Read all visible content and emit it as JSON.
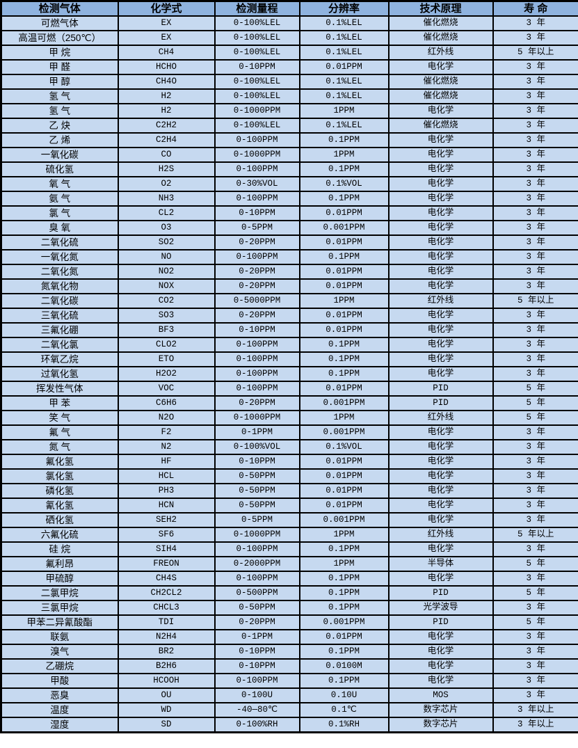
{
  "table": {
    "columns": [
      {
        "key": "gas",
        "label": "检测气体"
      },
      {
        "key": "formula",
        "label": "化学式"
      },
      {
        "key": "range",
        "label": "检测量程"
      },
      {
        "key": "resolution",
        "label": "分辨率"
      },
      {
        "key": "principle",
        "label": "技术原理"
      },
      {
        "key": "lifespan",
        "label": "寿 命"
      }
    ],
    "rows": [
      [
        "可燃气体",
        "EX",
        "0-100%LEL",
        "0.1%LEL",
        "催化燃烧",
        "3 年"
      ],
      [
        "高温可燃（250℃）",
        "EX",
        "0-100%LEL",
        "0.1%LEL",
        "催化燃烧",
        "3 年"
      ],
      [
        "甲 烷",
        "CH4",
        "0-100%LEL",
        "0.1%LEL",
        "红外线",
        "5 年以上"
      ],
      [
        "甲 醛",
        "HCHO",
        "0-10PPM",
        "0.01PPM",
        "电化学",
        "3 年"
      ],
      [
        "甲 醇",
        "CH4O",
        "0-100%LEL",
        "0.1%LEL",
        "催化燃烧",
        "3 年"
      ],
      [
        "氢 气",
        "H2",
        "0-100%LEL",
        "0.1%LEL",
        "催化燃烧",
        "3 年"
      ],
      [
        "氢 气",
        "H2",
        "0-1000PPM",
        "1PPM",
        "电化学",
        "3 年"
      ],
      [
        "乙 炔",
        "C2H2",
        "0-100%LEL",
        "0.1%LEL",
        "催化燃烧",
        "3 年"
      ],
      [
        "乙 烯",
        "C2H4",
        "0-100PPM",
        "0.1PPM",
        "电化学",
        "3 年"
      ],
      [
        "一氧化碳",
        "CO",
        "0-1000PPM",
        "1PPM",
        "电化学",
        "3 年"
      ],
      [
        "硫化氢",
        "H2S",
        "0-100PPM",
        "0.1PPM",
        "电化学",
        "3 年"
      ],
      [
        "氧 气",
        "O2",
        "0-30%VOL",
        "0.1%VOL",
        "电化学",
        "3 年"
      ],
      [
        "氨 气",
        "NH3",
        "0-100PPM",
        "0.1PPM",
        "电化学",
        "3 年"
      ],
      [
        "氯 气",
        "CL2",
        "0-10PPM",
        "0.01PPM",
        "电化学",
        "3 年"
      ],
      [
        "臭 氧",
        "O3",
        "0-5PPM",
        "0.001PPM",
        "电化学",
        "3 年"
      ],
      [
        "二氧化硫",
        "SO2",
        "0-20PPM",
        "0.01PPM",
        "电化学",
        "3 年"
      ],
      [
        "一氧化氮",
        "NO",
        "0-100PPM",
        "0.1PPM",
        "电化学",
        "3 年"
      ],
      [
        "二氧化氮",
        "NO2",
        "0-20PPM",
        "0.01PPM",
        "电化学",
        "3 年"
      ],
      [
        "氮氧化物",
        "NOX",
        "0-20PPM",
        "0.01PPM",
        "电化学",
        "3 年"
      ],
      [
        "二氧化碳",
        "CO2",
        "0-5000PPM",
        "1PPM",
        "红外线",
        "5 年以上"
      ],
      [
        "三氧化硫",
        "SO3",
        "0-20PPM",
        "0.01PPM",
        "电化学",
        "3 年"
      ],
      [
        "三氟化硼",
        "BF3",
        "0-10PPM",
        "0.01PPM",
        "电化学",
        "3 年"
      ],
      [
        "二氧化氯",
        "CLO2",
        "0-100PPM",
        "0.1PPM",
        "电化学",
        "3 年"
      ],
      [
        "环氧乙烷",
        "ETO",
        "0-100PPM",
        "0.1PPM",
        "电化学",
        "3 年"
      ],
      [
        "过氧化氢",
        "H2O2",
        "0-100PPM",
        "0.1PPM",
        "电化学",
        "3 年"
      ],
      [
        "挥发性气体",
        "VOC",
        "0-100PPM",
        "0.01PPM",
        "PID",
        "5 年"
      ],
      [
        "甲 苯",
        "C6H6",
        "0-20PPM",
        "0.001PPM",
        "PID",
        "5 年"
      ],
      [
        "笑 气",
        "N2O",
        "0-1000PPM",
        "1PPM",
        "红外线",
        "5 年"
      ],
      [
        "氟 气",
        "F2",
        "0-1PPM",
        "0.001PPM",
        "电化学",
        "3 年"
      ],
      [
        "氮 气",
        "N2",
        "0-100%VOL",
        "0.1%VOL",
        "电化学",
        "3 年"
      ],
      [
        "氟化氢",
        "HF",
        "0-10PPM",
        "0.01PPM",
        "电化学",
        "3 年"
      ],
      [
        "氯化氢",
        "HCL",
        "0-50PPM",
        "0.01PPM",
        "电化学",
        "3 年"
      ],
      [
        "磷化氢",
        "PH3",
        "0-50PPM",
        "0.01PPM",
        "电化学",
        "3 年"
      ],
      [
        "氰化氢",
        "HCN",
        "0-50PPM",
        "0.01PPM",
        "电化学",
        "3 年"
      ],
      [
        "硒化氢",
        "SEH2",
        "0-5PPM",
        "0.001PPM",
        "电化学",
        "3 年"
      ],
      [
        "六氟化硫",
        "SF6",
        "0-1000PPM",
        "1PPM",
        "红外线",
        "5 年以上"
      ],
      [
        "硅 烷",
        "SIH4",
        "0-100PPM",
        "0.1PPM",
        "电化学",
        "3 年"
      ],
      [
        "氟利昂",
        "FREON",
        "0-2000PPM",
        "1PPM",
        "半导体",
        "5 年"
      ],
      [
        "甲硫醇",
        "CH4S",
        "0-100PPM",
        "0.1PPM",
        "电化学",
        "3 年"
      ],
      [
        "二氯甲烷",
        "CH2CL2",
        "0-500PPM",
        "0.1PPM",
        "PID",
        "5 年"
      ],
      [
        "三氯甲烷",
        "CHCL3",
        "0-50PPM",
        "0.1PPM",
        "光学波导",
        "3 年"
      ],
      [
        "甲苯二异氰酸酯",
        "TDI",
        "0-20PPM",
        "0.001PPM",
        "PID",
        "5 年"
      ],
      [
        "联氨",
        "N2H4",
        "0-1PPM",
        "0.01PPM",
        "电化学",
        "3 年"
      ],
      [
        "溴气",
        "BR2",
        "0-10PPM",
        "0.1PPM",
        "电化学",
        "3 年"
      ],
      [
        "乙硼烷",
        "B2H6",
        "0-10PPM",
        "0.0100M",
        "电化学",
        "3 年"
      ],
      [
        "甲酸",
        "HCOOH",
        "0-100PPM",
        "0.1PPM",
        "电化学",
        "3 年"
      ],
      [
        "恶臭",
        "OU",
        "0-100U",
        "0.10U",
        "MOS",
        "3 年"
      ],
      [
        "温度",
        "WD",
        "-40—80℃",
        "0.1℃",
        "数字芯片",
        "3 年以上"
      ],
      [
        "湿度",
        "SD",
        "0-100%RH",
        "0.1%RH",
        "数字芯片",
        "3 年以上"
      ]
    ],
    "colors": {
      "header_bg": "#8FB3DF",
      "row_bg": "#C6D9F0",
      "border": "#000000",
      "text": "#000000"
    }
  }
}
